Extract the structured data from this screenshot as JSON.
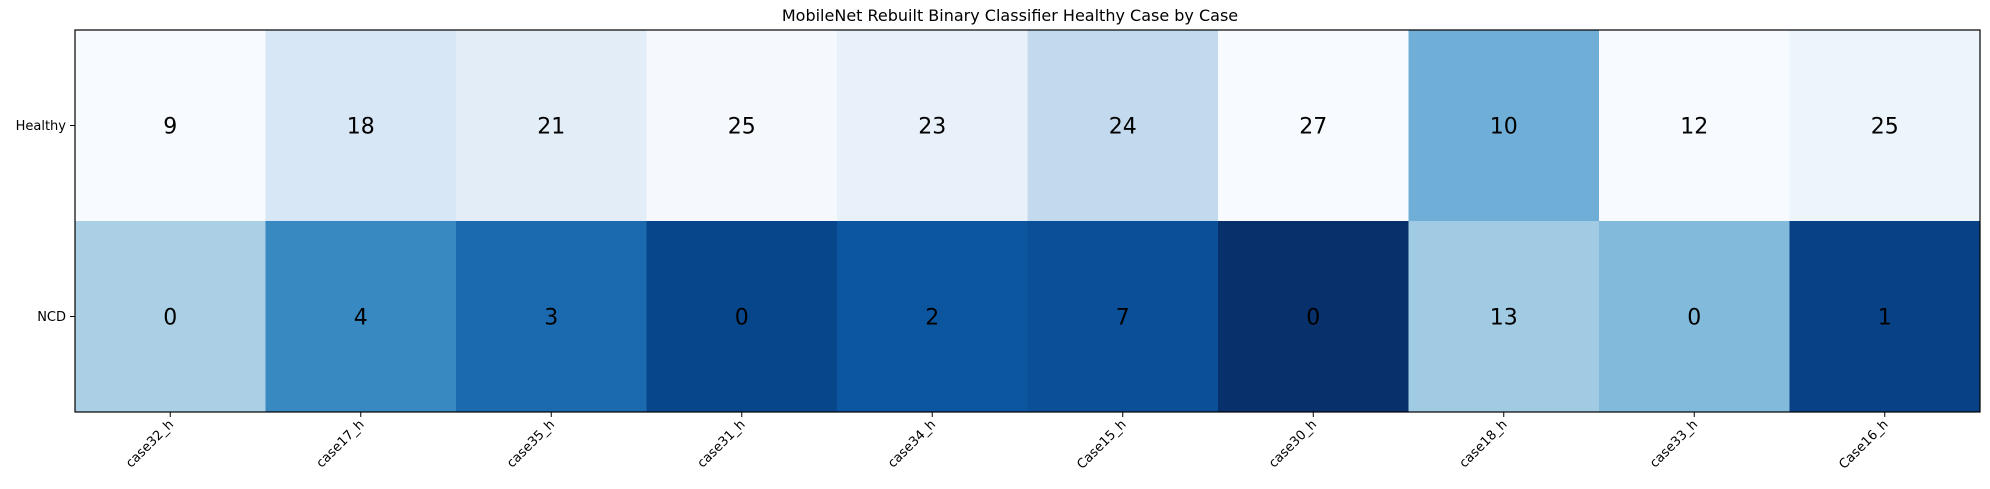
{
  "chart_data": {
    "type": "heatmap",
    "title": "MobileNet Rebuilt Binary Classifier Healthy Case by Case",
    "xlabel": "",
    "ylabel": "",
    "grid": false,
    "colormap": "Blues",
    "x_categories": [
      "case32_h",
      "case17_h",
      "case35_h",
      "case31_h",
      "case34_h",
      "Case15_h",
      "case30_h",
      "case18_h",
      "case33_h",
      "Case16_h"
    ],
    "y_categories": [
      "Healthy",
      "NCD"
    ],
    "values": [
      [
        9,
        18,
        21,
        25,
        23,
        24,
        27,
        10,
        12,
        25
      ],
      [
        0,
        4,
        3,
        0,
        2,
        7,
        0,
        13,
        0,
        1
      ]
    ],
    "cell_colors": [
      [
        "#f7fbff",
        "#d8e7f5",
        "#e2edf8",
        "#f5f9fe",
        "#e8f1fa",
        "#c3daee",
        "#f7fbff",
        "#6fafd7",
        "#f7fbff",
        "#ecf4fc"
      ],
      [
        "#abd0e6",
        "#3888c2",
        "#1b6aaf",
        "#08468b",
        "#0c56a0",
        "#0a4f98",
        "#08306b",
        "#a0cbe2",
        "#81badb",
        "#084186"
      ]
    ],
    "text_color": "#000000"
  }
}
